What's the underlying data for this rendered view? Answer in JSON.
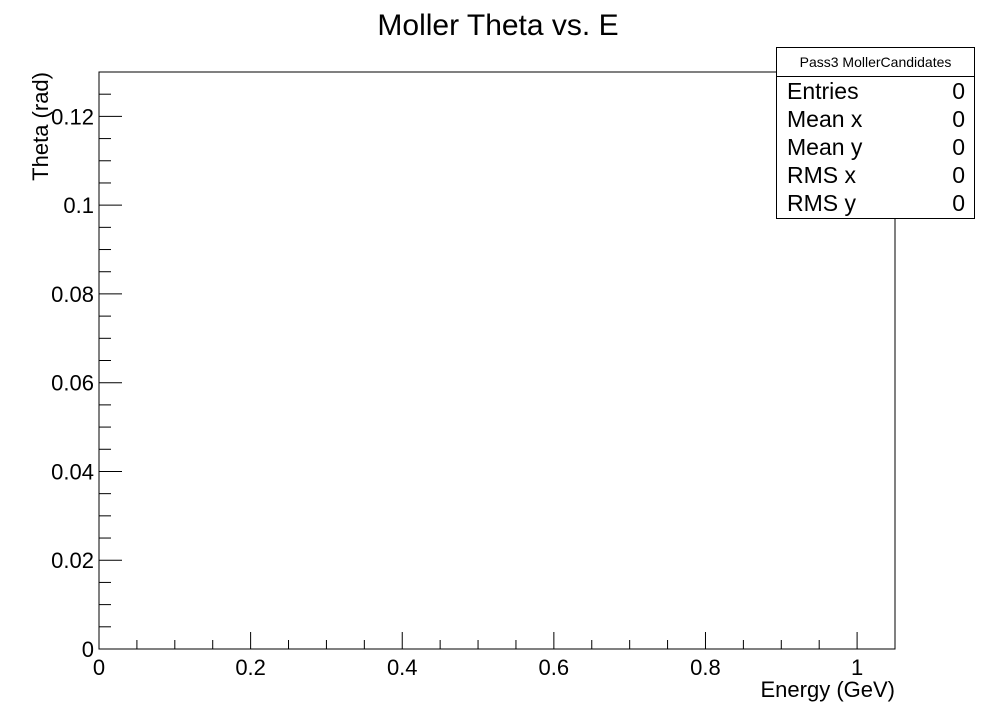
{
  "chart_data": {
    "type": "scatter",
    "title": "Moller Theta vs. E",
    "xlabel": "Energy (GeV)",
    "ylabel": "Theta (rad)",
    "xlim": [
      0,
      1.05
    ],
    "ylim": [
      0,
      0.13
    ],
    "x_ticks": [
      0,
      0.2,
      0.4,
      0.6,
      0.8,
      1
    ],
    "x_tick_labels": [
      "0",
      "0.2",
      "0.4",
      "0.6",
      "0.8",
      "1"
    ],
    "y_ticks": [
      0,
      0.02,
      0.04,
      0.06,
      0.08,
      0.1,
      0.12
    ],
    "y_tick_labels": [
      "0",
      "0.02",
      "0.04",
      "0.06",
      "0.08",
      "0.1",
      "0.12"
    ],
    "grid": false,
    "series": [
      {
        "name": "Pass3 MollerCandidates",
        "x": [],
        "y": []
      }
    ],
    "stats_box": {
      "title": "Pass3 MollerCandidates",
      "placement": "top-right",
      "rows": [
        {
          "label": "Entries",
          "value": "0"
        },
        {
          "label": "Mean x",
          "value": "0"
        },
        {
          "label": "Mean y",
          "value": "0"
        },
        {
          "label": "RMS x",
          "value": "0"
        },
        {
          "label": "RMS y",
          "value": "0"
        }
      ]
    }
  }
}
